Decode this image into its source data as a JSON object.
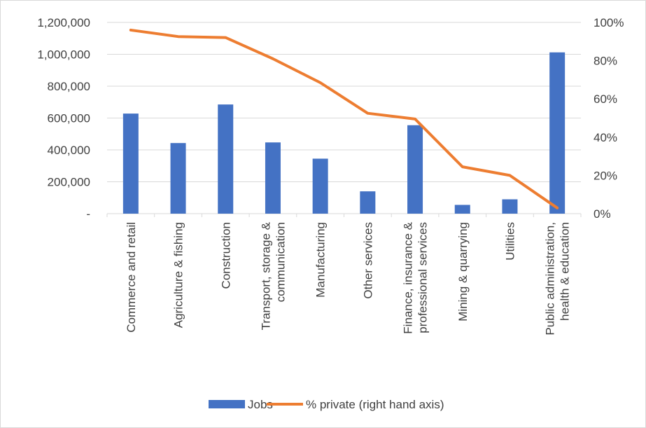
{
  "chart_data": {
    "type": "bar+line",
    "title": "",
    "categories": [
      [
        "Commerce and retail"
      ],
      [
        "Agriculture & fishing"
      ],
      [
        "Construction"
      ],
      [
        "Transport, storage &",
        "communication"
      ],
      [
        "Manufacturing"
      ],
      [
        "Other services"
      ],
      [
        "Finance, insurance &",
        "professional services"
      ],
      [
        "Mining & quarrying"
      ],
      [
        "Utilities"
      ],
      [
        "Public administration,",
        "health & education"
      ]
    ],
    "series": [
      {
        "name": "Jobs",
        "type": "bar",
        "axis": "left",
        "color": "#4472C4",
        "values": [
          628000,
          443000,
          685000,
          447000,
          345000,
          140000,
          555000,
          55000,
          90000,
          1012000
        ]
      },
      {
        "name": "% private (right hand axis)",
        "type": "line",
        "axis": "right",
        "color": "#ED7D31",
        "values": [
          0.96,
          0.926,
          0.921,
          0.81,
          0.685,
          0.525,
          0.495,
          0.245,
          0.2,
          0.03
        ]
      }
    ],
    "y_left": {
      "min": 0,
      "max": 1200000,
      "ticks": [
        0,
        200000,
        400000,
        600000,
        800000,
        1000000,
        1200000
      ],
      "tick_labels": [
        "-",
        "200,000",
        "400,000",
        "600,000",
        "800,000",
        "1,000,000",
        "1,200,000"
      ]
    },
    "y_right": {
      "min": 0,
      "max": 1,
      "ticks": [
        0,
        0.2,
        0.4,
        0.6,
        0.8,
        1.0
      ],
      "tick_labels": [
        "0%",
        "20%",
        "40%",
        "60%",
        "80%",
        "100%"
      ]
    },
    "gridlines": true,
    "legend": {
      "position": "bottom"
    }
  }
}
